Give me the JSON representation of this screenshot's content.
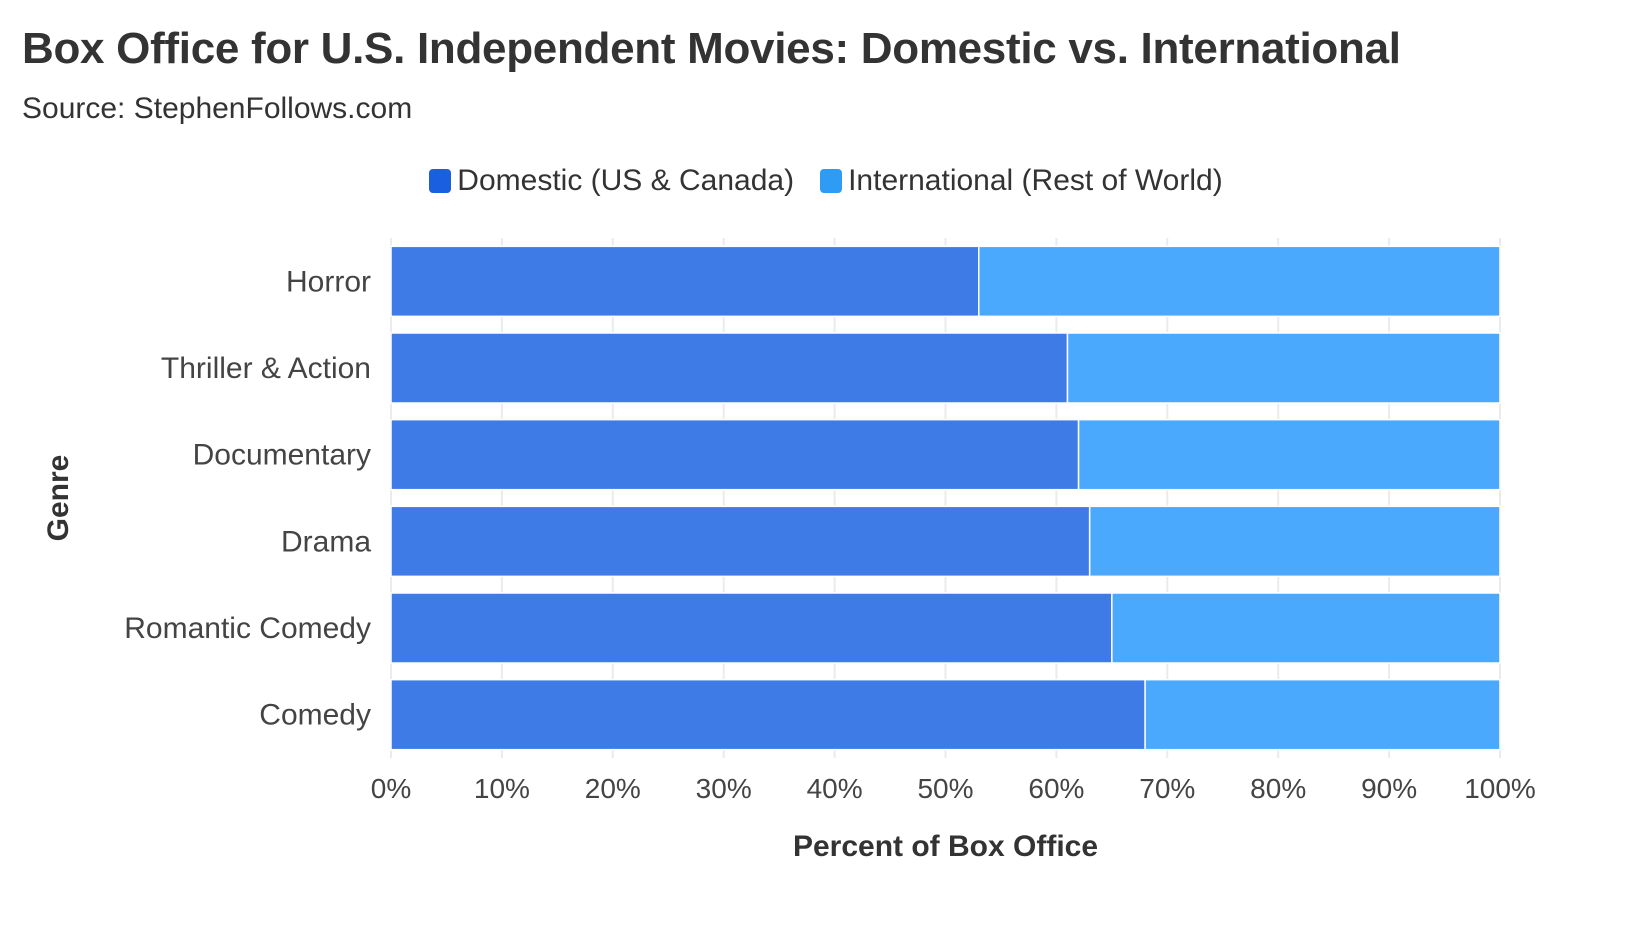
{
  "title": "Box Office for U.S. Independent Movies: Domestic vs. International",
  "subtitle": "Source: StephenFollows.com",
  "colors": {
    "domestic": "#3e7be6",
    "international": "#4aa8fd",
    "domestic_swatch": "#1a5fdf",
    "international_swatch": "#2e9bf5"
  },
  "chart_data": {
    "type": "bar",
    "orientation": "horizontal",
    "stacked": true,
    "categories": [
      "Horror",
      "Thriller & Action",
      "Documentary",
      "Drama",
      "Romantic Comedy",
      "Comedy"
    ],
    "series": [
      {
        "name": "Domestic (US & Canada)",
        "values": [
          53,
          61,
          62,
          63,
          65,
          68
        ]
      },
      {
        "name": "International (Rest of World)",
        "values": [
          47,
          39,
          38,
          37,
          35,
          32
        ]
      }
    ],
    "xlabel": "Percent of Box Office",
    "ylabel": "Genre",
    "xlim": [
      0,
      100
    ],
    "x_ticks": [
      "0%",
      "10%",
      "20%",
      "30%",
      "40%",
      "50%",
      "60%",
      "70%",
      "80%",
      "90%",
      "100%"
    ],
    "grid": true,
    "legend_position": "top-center"
  }
}
